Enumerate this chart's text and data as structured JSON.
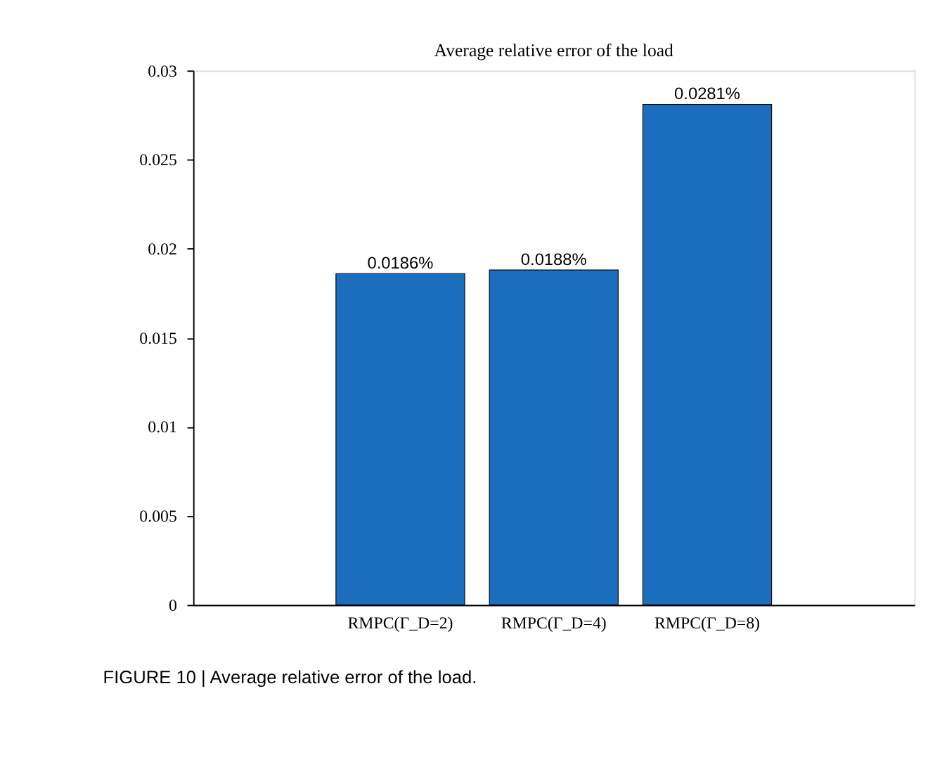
{
  "chart_data": {
    "type": "bar",
    "title": "Average relative error of the load",
    "categories": [
      "RMPC(Γ_D=2)",
      "RMPC(Γ_D=4)",
      "RMPC(Γ_D=8)"
    ],
    "values": [
      0.0186,
      0.0188,
      0.0281
    ],
    "value_labels": [
      "0.0186%",
      "0.0188%",
      "0.0281%"
    ],
    "color": "#1a6ebd",
    "ylim": [
      0,
      0.03
    ],
    "yticks": [
      0,
      0.005,
      0.01,
      0.015,
      0.02,
      0.025,
      0.03
    ],
    "grid": false,
    "annotations": [
      "FIGURE 10 | Average relative error of the load."
    ]
  }
}
